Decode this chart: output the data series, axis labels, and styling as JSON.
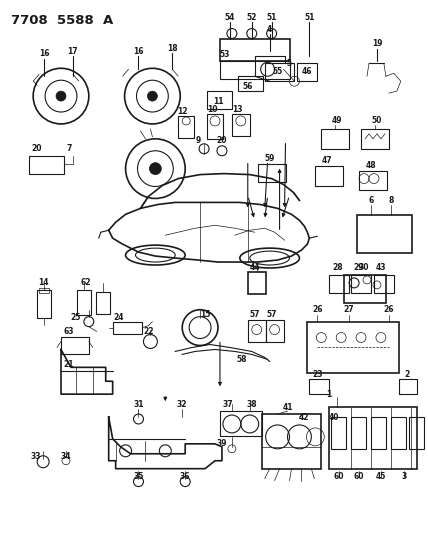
{
  "title": "7708 5588 A",
  "bg_color": "#f0f0f0",
  "fig_width": 4.28,
  "fig_height": 5.33,
  "dpi": 100,
  "line_color": "#1a1a1a",
  "label_fontsize": 5.5,
  "label_bold_fontsize": 7.0,
  "title_fontsize": 9.5
}
